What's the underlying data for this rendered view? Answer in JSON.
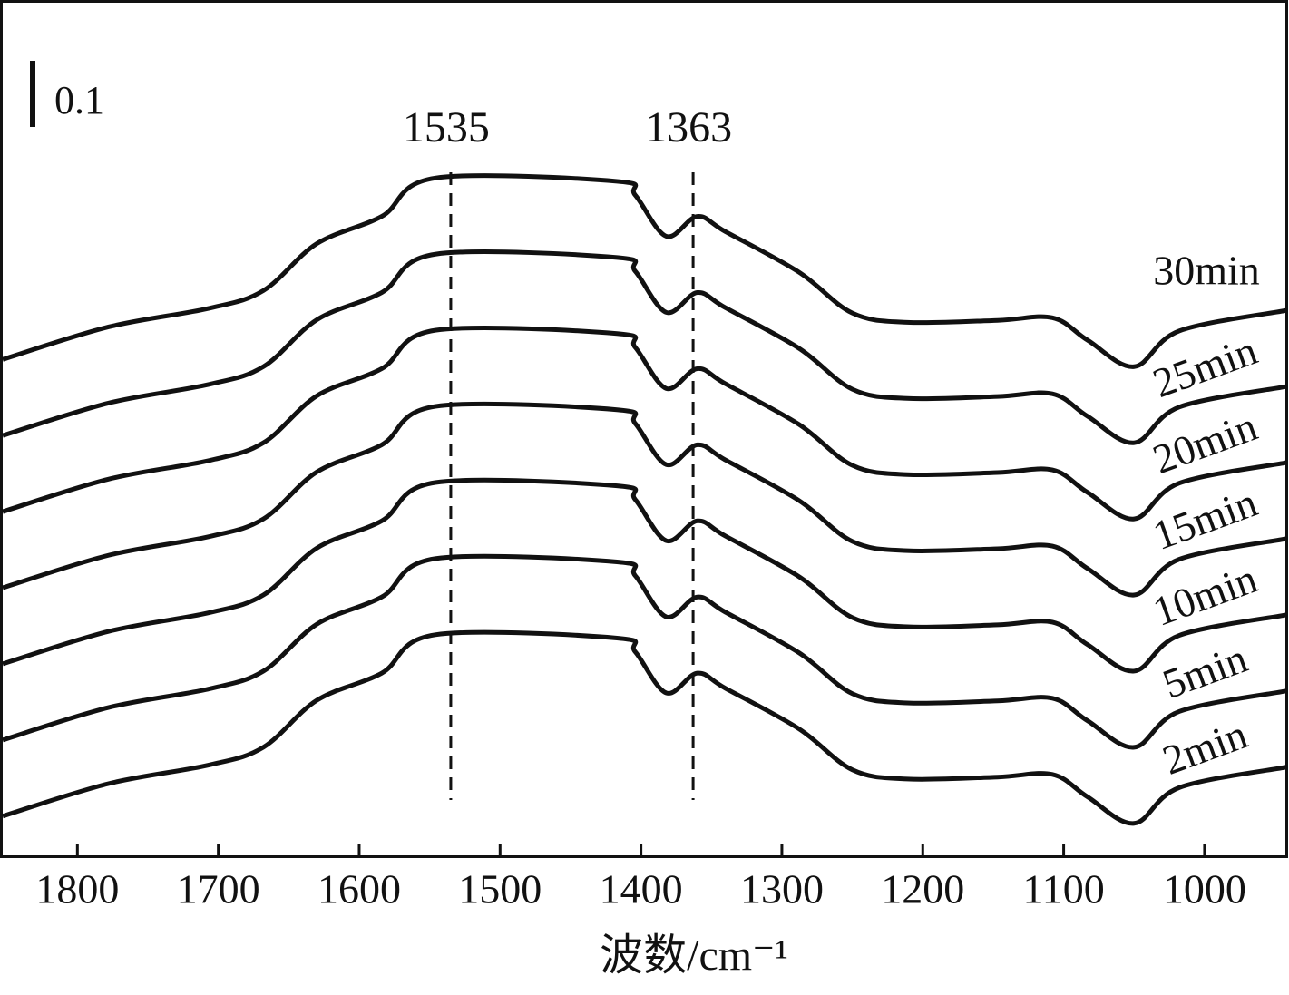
{
  "chart_data": {
    "type": "line",
    "x_label": "波数/cm⁻¹",
    "x": [
      1853,
      1778,
      1707,
      1668,
      1630,
      1584,
      1546,
      1417,
      1404,
      1382,
      1360,
      1340,
      1288,
      1250,
      1211,
      1147,
      1108,
      1083,
      1050,
      1018,
      942
    ],
    "series": [
      {
        "name": "30min",
        "color": "#111111",
        "values": [
          0.752,
          0.801,
          0.829,
          0.856,
          0.927,
          0.968,
          1.026,
          1.021,
          1.0,
          0.938,
          0.968,
          0.945,
          0.884,
          0.822,
          0.808,
          0.811,
          0.815,
          0.781,
          0.741,
          0.795,
          0.826
        ]
      },
      {
        "name": "25min",
        "color": "#111111",
        "values": [
          0.637,
          0.686,
          0.714,
          0.741,
          0.812,
          0.853,
          0.911,
          0.906,
          0.885,
          0.823,
          0.853,
          0.83,
          0.769,
          0.707,
          0.693,
          0.696,
          0.7,
          0.666,
          0.626,
          0.68,
          0.711
        ]
      },
      {
        "name": "20min",
        "color": "#111111",
        "values": [
          0.522,
          0.571,
          0.599,
          0.626,
          0.697,
          0.738,
          0.796,
          0.791,
          0.77,
          0.708,
          0.738,
          0.715,
          0.654,
          0.592,
          0.578,
          0.581,
          0.585,
          0.551,
          0.511,
          0.565,
          0.596
        ]
      },
      {
        "name": "15min",
        "color": "#111111",
        "values": [
          0.407,
          0.456,
          0.484,
          0.511,
          0.582,
          0.623,
          0.681,
          0.676,
          0.655,
          0.593,
          0.623,
          0.6,
          0.539,
          0.477,
          0.463,
          0.466,
          0.47,
          0.436,
          0.396,
          0.45,
          0.481
        ]
      },
      {
        "name": "10min",
        "color": "#111111",
        "values": [
          0.292,
          0.341,
          0.369,
          0.396,
          0.467,
          0.508,
          0.566,
          0.561,
          0.54,
          0.478,
          0.508,
          0.485,
          0.424,
          0.362,
          0.348,
          0.351,
          0.355,
          0.321,
          0.281,
          0.335,
          0.366
        ]
      },
      {
        "name": "5min",
        "color": "#111111",
        "values": [
          0.177,
          0.226,
          0.254,
          0.281,
          0.352,
          0.393,
          0.451,
          0.446,
          0.425,
          0.363,
          0.393,
          0.37,
          0.309,
          0.247,
          0.233,
          0.236,
          0.24,
          0.206,
          0.166,
          0.22,
          0.251
        ]
      },
      {
        "name": "2min",
        "color": "#111111",
        "values": [
          0.062,
          0.111,
          0.139,
          0.166,
          0.237,
          0.278,
          0.336,
          0.331,
          0.31,
          0.248,
          0.278,
          0.255,
          0.194,
          0.132,
          0.118,
          0.121,
          0.125,
          0.091,
          0.051,
          0.105,
          0.136
        ]
      }
    ],
    "xlim": [
      1853,
      942
    ],
    "xticks": [
      1800,
      1700,
      1600,
      1500,
      1400,
      1300,
      1200,
      1100,
      1000
    ],
    "ylim": [
      0,
      1.295
    ],
    "vlines": [
      1535,
      1363
    ],
    "scale_bar": 0.1
  }
}
